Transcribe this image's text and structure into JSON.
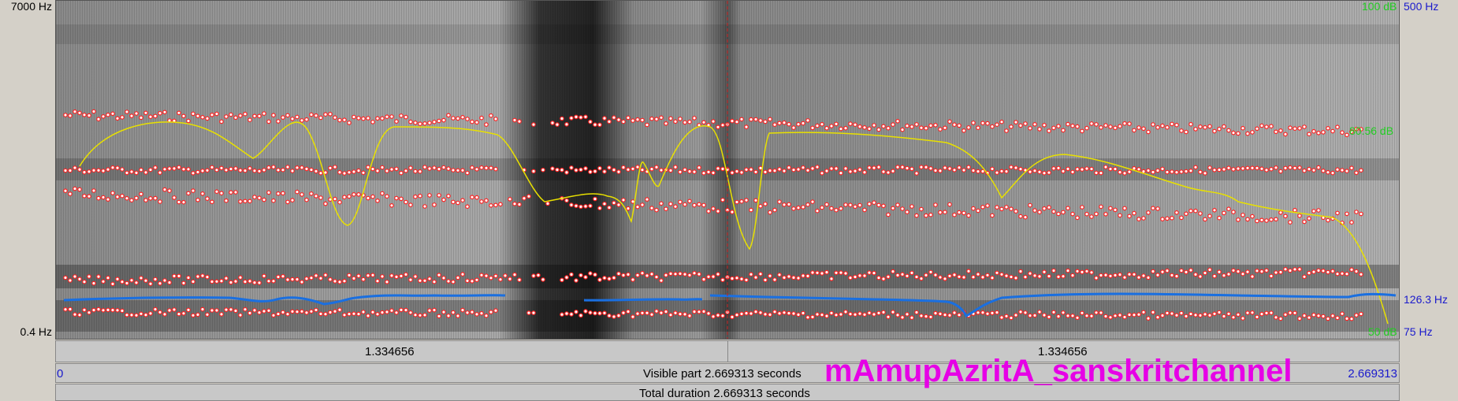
{
  "freq_axis": {
    "top": "7000 Hz",
    "bottom": "0.4 Hz"
  },
  "intensity_axis": {
    "top": "100 dB",
    "mid": "80.56 dB",
    "bottom": "50 dB"
  },
  "pitch_axis": {
    "top": "500 Hz",
    "current": "126.3 Hz",
    "bottom": "75 Hz"
  },
  "segments": {
    "left": "1.334656",
    "right": "1.334656"
  },
  "visible_part": {
    "start": "0",
    "label": "Visible part 2.669313 seconds",
    "end": "2.669313"
  },
  "total_duration": "Total duration 2.669313 seconds",
  "watermark": "mAmupAzritA_sanskritchannel",
  "colors": {
    "formant": "#ff2020",
    "intensity": "#e8e000",
    "pitch": "#1a6fe0",
    "cursor": "#cc2222"
  }
}
